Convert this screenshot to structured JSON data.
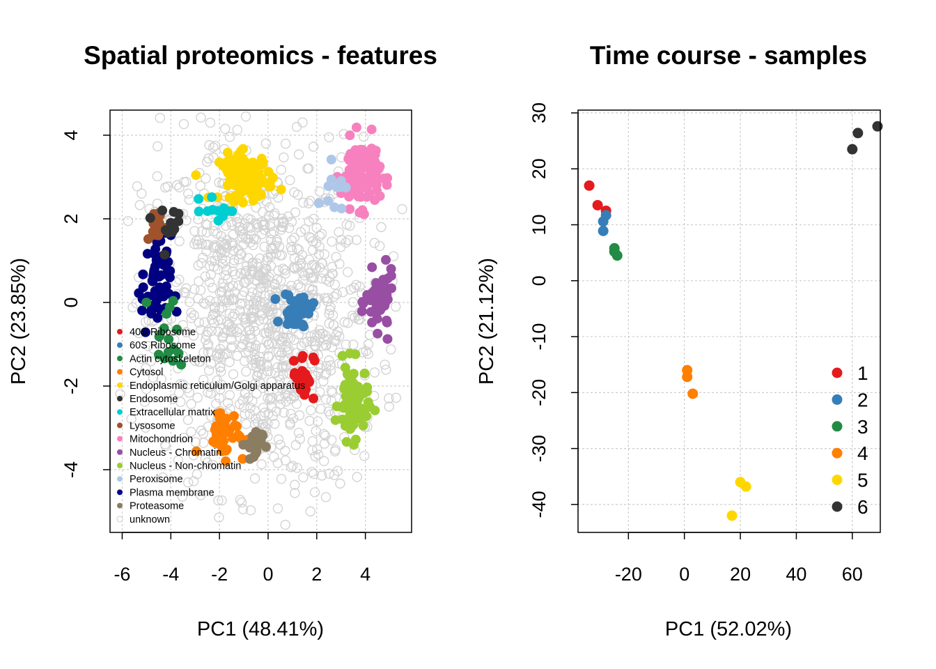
{
  "chart_data": [
    {
      "type": "scatter",
      "title": "Spatial proteomics - features",
      "xlabel": "PC1 (48.41%)",
      "ylabel": "PC2 (23.85%)",
      "xlim": [
        -6.5,
        5.9
      ],
      "ylim": [
        -5.5,
        4.6
      ],
      "xticks": [
        -6,
        -4,
        -2,
        0,
        2,
        4
      ],
      "yticks": [
        -4,
        -2,
        0,
        2,
        4
      ],
      "grid": true,
      "legend_position": "bottom-left",
      "background_class": "unknown",
      "clusters": [
        {
          "name": "unknown",
          "color": "#d3d3d3",
          "cx": -0.2,
          "cy": -0.3,
          "sx": 2.3,
          "sy": 2.1,
          "n": 1050
        },
        {
          "name": "Endoplasmic reticulum/Golgi apparatus",
          "color": "#ffd700",
          "cx": -0.9,
          "cy": 3.0,
          "sx": 0.55,
          "sy": 0.28,
          "n": 90
        },
        {
          "name": "Mitochondrion",
          "color": "#f781bf",
          "cx": 3.8,
          "cy": 3.1,
          "sx": 0.4,
          "sy": 0.4,
          "n": 120
        },
        {
          "name": "Nucleus - Chromatin",
          "color": "#984ea3",
          "cx": 4.6,
          "cy": 0.0,
          "sx": 0.28,
          "sy": 0.35,
          "n": 60
        },
        {
          "name": "Nucleus - Non-chromatin",
          "color": "#9acd32",
          "cx": 3.5,
          "cy": -2.4,
          "sx": 0.3,
          "sy": 0.45,
          "n": 70
        },
        {
          "name": "60S Ribosome",
          "color": "#377eb8",
          "cx": 1.2,
          "cy": -0.2,
          "sx": 0.3,
          "sy": 0.22,
          "n": 40
        },
        {
          "name": "40S Ribosome",
          "color": "#e41a1c",
          "cx": 1.45,
          "cy": -1.75,
          "sx": 0.22,
          "sy": 0.3,
          "n": 25
        },
        {
          "name": "Cytosol",
          "color": "#ff7f00",
          "cx": -1.8,
          "cy": -3.1,
          "sx": 0.45,
          "sy": 0.3,
          "n": 35
        },
        {
          "name": "Proteasome",
          "color": "#8b7d62",
          "cx": -0.6,
          "cy": -3.4,
          "sx": 0.18,
          "sy": 0.2,
          "n": 25
        },
        {
          "name": "Plasma membrane",
          "color": "#000080",
          "cx": -4.6,
          "cy": 0.4,
          "sx": 0.3,
          "sy": 0.6,
          "n": 55
        },
        {
          "name": "Actin cytoskeleton",
          "color": "#228b45",
          "cx": -4.1,
          "cy": -0.8,
          "sx": 0.35,
          "sy": 0.5,
          "n": 16
        },
        {
          "name": "Lysosome",
          "color": "#a0522d",
          "cx": -4.6,
          "cy": 1.8,
          "sx": 0.2,
          "sy": 0.2,
          "n": 15
        },
        {
          "name": "Endosome",
          "color": "#333333",
          "cx": -4.0,
          "cy": 1.9,
          "sx": 0.45,
          "sy": 0.35,
          "n": 12
        },
        {
          "name": "Extracellular matrix",
          "color": "#00ced1",
          "cx": -2.0,
          "cy": 2.2,
          "sx": 0.35,
          "sy": 0.15,
          "n": 12
        },
        {
          "name": "Peroxisome",
          "color": "#aec7e8",
          "cx": 2.75,
          "cy": 2.9,
          "sx": 0.2,
          "sy": 0.35,
          "n": 12
        }
      ],
      "legend": [
        {
          "label": "40S Ribosome",
          "color": "#e41a1c",
          "filled": true
        },
        {
          "label": "60S Ribosome",
          "color": "#377eb8",
          "filled": true
        },
        {
          "label": "Actin cytoskeleton",
          "color": "#228b45",
          "filled": true
        },
        {
          "label": "Cytosol",
          "color": "#ff7f00",
          "filled": true
        },
        {
          "label": "Endoplasmic reticulum/Golgi apparatus",
          "color": "#ffd700",
          "filled": true
        },
        {
          "label": "Endosome",
          "color": "#333333",
          "filled": true
        },
        {
          "label": "Extracellular matrix",
          "color": "#00ced1",
          "filled": true
        },
        {
          "label": "Lysosome",
          "color": "#a0522d",
          "filled": true
        },
        {
          "label": "Mitochondrion",
          "color": "#f781bf",
          "filled": true
        },
        {
          "label": "Nucleus - Chromatin",
          "color": "#984ea3",
          "filled": true
        },
        {
          "label": "Nucleus - Non-chromatin",
          "color": "#9acd32",
          "filled": true
        },
        {
          "label": "Peroxisome",
          "color": "#aec7e8",
          "filled": true
        },
        {
          "label": "Plasma membrane",
          "color": "#000080",
          "filled": true
        },
        {
          "label": "Proteasome",
          "color": "#8b7d62",
          "filled": true
        },
        {
          "label": "unknown",
          "color": "#d3d3d3",
          "filled": false
        }
      ]
    },
    {
      "type": "scatter",
      "title": "Time course - samples",
      "xlabel": "PC1 (52.02%)",
      "ylabel": "PC2 (21.12%)",
      "xlim": [
        -38,
        70
      ],
      "ylim": [
        -45,
        30.5
      ],
      "xticks": [
        -20,
        0,
        20,
        40,
        60
      ],
      "yticks": [
        -40,
        -30,
        -20,
        -10,
        0,
        10,
        20,
        30
      ],
      "grid": true,
      "legend_position": "bottom-right",
      "points": [
        {
          "group": "1",
          "x": -34,
          "y": 17
        },
        {
          "group": "1",
          "x": -31,
          "y": 13.5
        },
        {
          "group": "1",
          "x": -28,
          "y": 12.5
        },
        {
          "group": "2",
          "x": -28,
          "y": 11.7
        },
        {
          "group": "2",
          "x": -29,
          "y": 10.6
        },
        {
          "group": "2",
          "x": -29,
          "y": 8.9
        },
        {
          "group": "3",
          "x": -25,
          "y": 5.8
        },
        {
          "group": "3",
          "x": -25,
          "y": 5.2
        },
        {
          "group": "3",
          "x": -24,
          "y": 4.5
        },
        {
          "group": "4",
          "x": 1,
          "y": -16
        },
        {
          "group": "4",
          "x": 1,
          "y": -17.2
        },
        {
          "group": "4",
          "x": 3,
          "y": -20.2
        },
        {
          "group": "5",
          "x": 20,
          "y": -36
        },
        {
          "group": "5",
          "x": 22,
          "y": -36.8
        },
        {
          "group": "5",
          "x": 17,
          "y": -42
        },
        {
          "group": "6",
          "x": 60,
          "y": 23.5
        },
        {
          "group": "6",
          "x": 62,
          "y": 26.4
        },
        {
          "group": "6",
          "x": 69,
          "y": 27.6
        }
      ],
      "legend": [
        {
          "label": "1",
          "color": "#e41a1c"
        },
        {
          "label": "2",
          "color": "#377eb8"
        },
        {
          "label": "3",
          "color": "#228b45"
        },
        {
          "label": "4",
          "color": "#ff7f00"
        },
        {
          "label": "5",
          "color": "#ffd700"
        },
        {
          "label": "6",
          "color": "#333333"
        }
      ]
    }
  ]
}
